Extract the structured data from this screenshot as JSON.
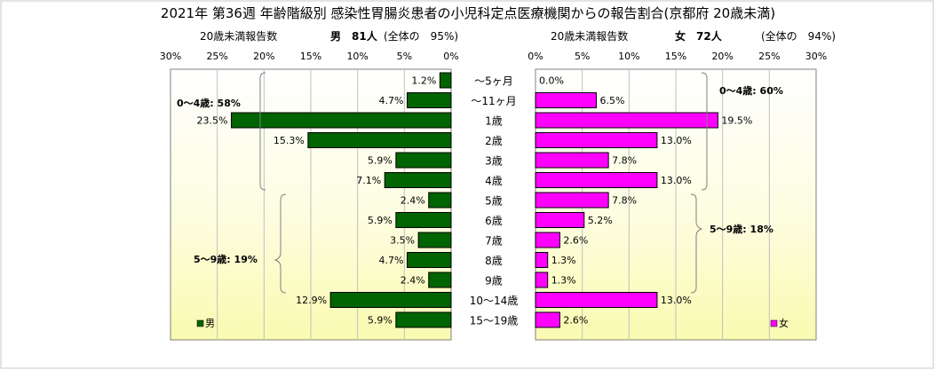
{
  "chart_data": {
    "type": "bar",
    "title": "2021年 第36週 年齢階級別 感染性胃腸炎患者の小児科定点医療機関からの報告割合(京都府 20歳未満)",
    "categories": [
      "〜5ヶ月",
      "〜11ヶ月",
      "1歳",
      "2歳",
      "3歳",
      "4歳",
      "5歳",
      "6歳",
      "7歳",
      "8歳",
      "9歳",
      "10〜14歳",
      "15〜19歳"
    ],
    "series": [
      {
        "name": "男",
        "color": "#006400",
        "values": [
          1.2,
          4.7,
          23.5,
          15.3,
          5.9,
          7.1,
          2.4,
          5.9,
          3.5,
          4.7,
          2.4,
          12.9,
          5.9
        ]
      },
      {
        "name": "女",
        "color": "#ff00ff",
        "values": [
          0.0,
          6.5,
          19.5,
          13.0,
          7.8,
          13.0,
          7.8,
          5.2,
          2.6,
          1.3,
          1.3,
          13.0,
          2.6
        ]
      }
    ],
    "xlim": [
      0,
      30
    ],
    "xticks": [
      "0%",
      "5%",
      "10%",
      "15%",
      "20%",
      "25%",
      "30%"
    ],
    "grid": true,
    "left": {
      "axis_title": "20歳未満報告数",
      "total_label": "男　81人",
      "share_label": "(全体の　95%)",
      "direction": "reversed",
      "groups": [
        {
          "label": "0〜4歳: 58%"
        },
        {
          "label": "5〜9歳: 19%"
        }
      ]
    },
    "right": {
      "axis_title": "20歳未満報告数",
      "total_label": "女　72人",
      "share_label": "(全体の　94%)",
      "direction": "normal",
      "groups": [
        {
          "label": "0〜4歳: 60%"
        },
        {
          "label": "5〜9歳: 18%"
        }
      ]
    }
  }
}
